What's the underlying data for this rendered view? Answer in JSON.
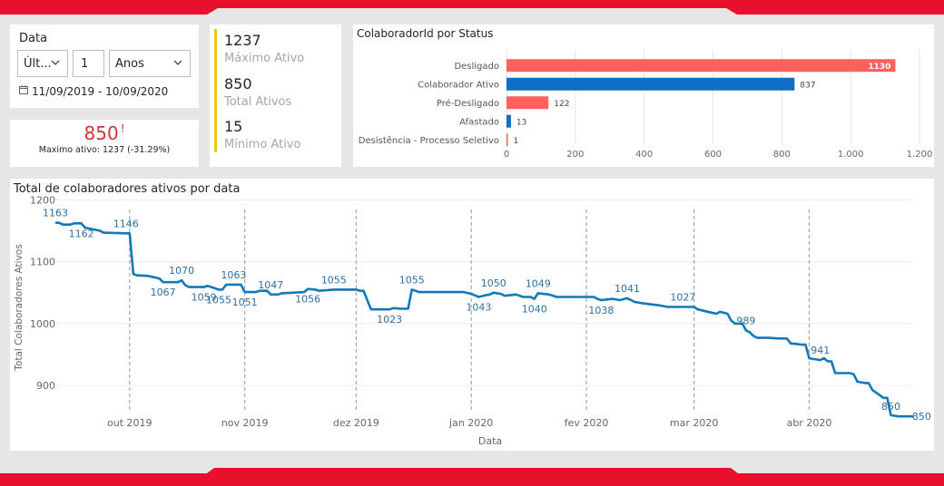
{
  "filter": {
    "title": "Data",
    "mode_value": "Últ...",
    "number_value": "1",
    "unit_value": "Anos",
    "range_text": "11/09/2019 - 10/09/2020"
  },
  "alert_card": {
    "value": "850",
    "alert_mark": "!",
    "subtitle": "Maximo ativo: 1237 (-31.29%)"
  },
  "kpis": [
    {
      "value": "1237",
      "label": "Máximo Ativo"
    },
    {
      "value": "850",
      "label": "Total Ativos"
    },
    {
      "value": "15",
      "label": "Mínimo Ativo"
    }
  ],
  "colors": {
    "accent_red": "#e8112d",
    "alert_red": "#d13438",
    "kpi_bar": "#f2c811",
    "bar_salmon": "#fd625e",
    "bar_blue": "#0f6fc6",
    "line_blue": "#1278b8",
    "label_blue": "#2f6fa0"
  },
  "chart_data": [
    {
      "type": "bar",
      "orientation": "horizontal",
      "title": "ColaboradorId por Status",
      "categories": [
        "Desligado",
        "Colaborador Ativo",
        "Pré-Desligado",
        "Afastado",
        "Desistência - Processo Seletivo"
      ],
      "values": [
        1130,
        837,
        122,
        13,
        1
      ],
      "value_labels": [
        "1130",
        "837",
        "122",
        "13",
        "1"
      ],
      "bar_colors": [
        "#fd625e",
        "#0f6fc6",
        "#fd625e",
        "#0f6fc6",
        "#fd625e"
      ],
      "xlim": [
        0,
        1200
      ],
      "xticks": [
        0,
        200,
        400,
        600,
        800,
        1000,
        1200
      ],
      "xtick_labels": [
        "0",
        "200",
        "400",
        "600",
        "800",
        "1.000",
        "1.200"
      ],
      "grid": true
    },
    {
      "type": "line",
      "title": "Total de colaboradores ativos por data",
      "xlabel": "Data",
      "ylabel": "Total Colaboradores Ativos",
      "ylim": [
        865,
        1205
      ],
      "yticks": [
        900,
        1000,
        1100,
        1200
      ],
      "xlim": [
        "2019-09-11",
        "2020-04-29"
      ],
      "x_ticks": [
        {
          "date": "2019-10-01",
          "label": "out 2019"
        },
        {
          "date": "2019-11-01",
          "label": "nov 2019"
        },
        {
          "date": "2019-12-01",
          "label": "dez 2019"
        },
        {
          "date": "2020-01-01",
          "label": "jan 2020"
        },
        {
          "date": "2020-02-01",
          "label": "fev 2020"
        },
        {
          "date": "2020-03-01",
          "label": "mar 2020"
        },
        {
          "date": "2020-04-01",
          "label": "abr 2020"
        }
      ],
      "points": [
        [
          "2019-09-11",
          1163
        ],
        [
          "2019-09-12",
          1163
        ],
        [
          "2019-09-13",
          1160
        ],
        [
          "2019-09-15",
          1160
        ],
        [
          "2019-09-16",
          1162
        ],
        [
          "2019-09-18",
          1162
        ],
        [
          "2019-09-19",
          1155
        ],
        [
          "2019-09-23",
          1150
        ],
        [
          "2019-09-24",
          1147
        ],
        [
          "2019-09-30",
          1146
        ],
        [
          "2019-10-01",
          1146
        ],
        [
          "2019-10-02",
          1080
        ],
        [
          "2019-10-03",
          1078
        ],
        [
          "2019-10-06",
          1077
        ],
        [
          "2019-10-09",
          1073
        ],
        [
          "2019-10-10",
          1067
        ],
        [
          "2019-10-14",
          1067
        ],
        [
          "2019-10-15",
          1070
        ],
        [
          "2019-10-16",
          1062
        ],
        [
          "2019-10-17",
          1059
        ],
        [
          "2019-10-21",
          1059
        ],
        [
          "2019-10-22",
          1061
        ],
        [
          "2019-10-24",
          1057
        ],
        [
          "2019-10-25",
          1055
        ],
        [
          "2019-10-26",
          1055
        ],
        [
          "2019-10-27",
          1063
        ],
        [
          "2019-10-31",
          1063
        ],
        [
          "2019-11-01",
          1051
        ],
        [
          "2019-11-04",
          1051
        ],
        [
          "2019-11-05",
          1053
        ],
        [
          "2019-11-07",
          1053
        ],
        [
          "2019-11-08",
          1047
        ],
        [
          "2019-11-10",
          1047
        ],
        [
          "2019-11-11",
          1049
        ],
        [
          "2019-11-14",
          1050
        ],
        [
          "2019-11-17",
          1051
        ],
        [
          "2019-11-18",
          1056
        ],
        [
          "2019-11-20",
          1055
        ],
        [
          "2019-11-21",
          1053
        ],
        [
          "2019-11-25",
          1055
        ],
        [
          "2019-11-29",
          1055
        ],
        [
          "2019-12-01",
          1055
        ],
        [
          "2019-12-02",
          1053
        ],
        [
          "2019-12-03",
          1053
        ],
        [
          "2019-12-05",
          1023
        ],
        [
          "2019-12-10",
          1023
        ],
        [
          "2019-12-11",
          1025
        ],
        [
          "2019-12-13",
          1024
        ],
        [
          "2019-12-15",
          1024
        ],
        [
          "2019-12-16",
          1055
        ],
        [
          "2019-12-17",
          1053
        ],
        [
          "2019-12-18",
          1051
        ],
        [
          "2019-12-30",
          1051
        ],
        [
          "2020-01-01",
          1048
        ],
        [
          "2020-01-03",
          1043
        ],
        [
          "2020-01-05",
          1046
        ],
        [
          "2020-01-06",
          1047
        ],
        [
          "2020-01-07",
          1050
        ],
        [
          "2020-01-09",
          1048
        ],
        [
          "2020-01-10",
          1045
        ],
        [
          "2020-01-13",
          1047
        ],
        [
          "2020-01-15",
          1043
        ],
        [
          "2020-01-17",
          1043
        ],
        [
          "2020-01-18",
          1040
        ],
        [
          "2020-01-19",
          1049
        ],
        [
          "2020-01-22",
          1047
        ],
        [
          "2020-01-24",
          1043
        ],
        [
          "2020-02-01",
          1043
        ],
        [
          "2020-02-03",
          1043
        ],
        [
          "2020-02-04",
          1040
        ],
        [
          "2020-02-05",
          1038
        ],
        [
          "2020-02-08",
          1040
        ],
        [
          "2020-02-10",
          1038
        ],
        [
          "2020-02-12",
          1041
        ],
        [
          "2020-02-14",
          1035
        ],
        [
          "2020-02-16",
          1033
        ],
        [
          "2020-02-20",
          1030
        ],
        [
          "2020-02-23",
          1027
        ],
        [
          "2020-03-01",
          1027
        ],
        [
          "2020-03-02",
          1023
        ],
        [
          "2020-03-04",
          1020
        ],
        [
          "2020-03-07",
          1016
        ],
        [
          "2020-03-08",
          1019
        ],
        [
          "2020-03-10",
          1016
        ],
        [
          "2020-03-11",
          1005
        ],
        [
          "2020-03-12",
          1000
        ],
        [
          "2020-03-14",
          1000
        ],
        [
          "2020-03-15",
          989
        ],
        [
          "2020-03-16",
          986
        ],
        [
          "2020-03-17",
          980
        ],
        [
          "2020-03-18",
          977
        ],
        [
          "2020-03-21",
          977
        ],
        [
          "2020-03-24",
          976
        ],
        [
          "2020-03-26",
          976
        ],
        [
          "2020-03-27",
          968
        ],
        [
          "2020-03-30",
          966
        ],
        [
          "2020-03-31",
          966
        ],
        [
          "2020-04-01",
          944
        ],
        [
          "2020-04-04",
          941
        ],
        [
          "2020-04-05",
          944
        ],
        [
          "2020-04-06",
          939
        ],
        [
          "2020-04-07",
          939
        ],
        [
          "2020-04-08",
          920
        ],
        [
          "2020-04-12",
          920
        ],
        [
          "2020-04-13",
          918
        ],
        [
          "2020-04-14",
          906
        ],
        [
          "2020-04-16",
          904
        ],
        [
          "2020-04-17",
          904
        ],
        [
          "2020-04-18",
          893
        ],
        [
          "2020-04-21",
          880
        ],
        [
          "2020-04-22",
          880
        ],
        [
          "2020-04-23",
          852
        ],
        [
          "2020-04-25",
          850
        ],
        [
          "2020-04-29",
          850
        ]
      ],
      "annotations": [
        {
          "date": "2019-09-11",
          "value": 1163,
          "label": "1163",
          "pos": "above"
        },
        {
          "date": "2019-09-18",
          "value": 1162,
          "label": "1162",
          "pos": "below"
        },
        {
          "date": "2019-09-30",
          "value": 1146,
          "label": "1146",
          "pos": "above"
        },
        {
          "date": "2019-10-10",
          "value": 1067,
          "label": "1067",
          "pos": "below"
        },
        {
          "date": "2019-10-15",
          "value": 1070,
          "label": "1070",
          "pos": "above"
        },
        {
          "date": "2019-10-21",
          "value": 1059,
          "label": "1059",
          "pos": "below"
        },
        {
          "date": "2019-10-25",
          "value": 1055,
          "label": "1055",
          "pos": "below"
        },
        {
          "date": "2019-10-29",
          "value": 1063,
          "label": "1063",
          "pos": "above"
        },
        {
          "date": "2019-11-01",
          "value": 1051,
          "label": "1051",
          "pos": "below"
        },
        {
          "date": "2019-11-08",
          "value": 1047,
          "label": "1047",
          "pos": "above"
        },
        {
          "date": "2019-11-18",
          "value": 1056,
          "label": "1056",
          "pos": "below"
        },
        {
          "date": "2019-11-25",
          "value": 1055,
          "label": "1055",
          "pos": "above"
        },
        {
          "date": "2019-12-10",
          "value": 1023,
          "label": "1023",
          "pos": "below"
        },
        {
          "date": "2019-12-16",
          "value": 1055,
          "label": "1055",
          "pos": "above"
        },
        {
          "date": "2020-01-03",
          "value": 1043,
          "label": "1043",
          "pos": "below"
        },
        {
          "date": "2020-01-07",
          "value": 1050,
          "label": "1050",
          "pos": "above"
        },
        {
          "date": "2020-01-18",
          "value": 1040,
          "label": "1040",
          "pos": "below"
        },
        {
          "date": "2020-01-19",
          "value": 1049,
          "label": "1049",
          "pos": "above"
        },
        {
          "date": "2020-02-05",
          "value": 1038,
          "label": "1038",
          "pos": "below"
        },
        {
          "date": "2020-02-12",
          "value": 1041,
          "label": "1041",
          "pos": "above"
        },
        {
          "date": "2020-02-27",
          "value": 1027,
          "label": "1027",
          "pos": "above"
        },
        {
          "date": "2020-03-15",
          "value": 989,
          "label": "989",
          "pos": "above"
        },
        {
          "date": "2020-04-04",
          "value": 941,
          "label": "941",
          "pos": "above"
        },
        {
          "date": "2020-04-23",
          "value": 850,
          "label": "850",
          "pos": "above"
        },
        {
          "date": "2020-04-28",
          "value": 850,
          "label": "850",
          "pos": "right"
        }
      ]
    }
  ]
}
